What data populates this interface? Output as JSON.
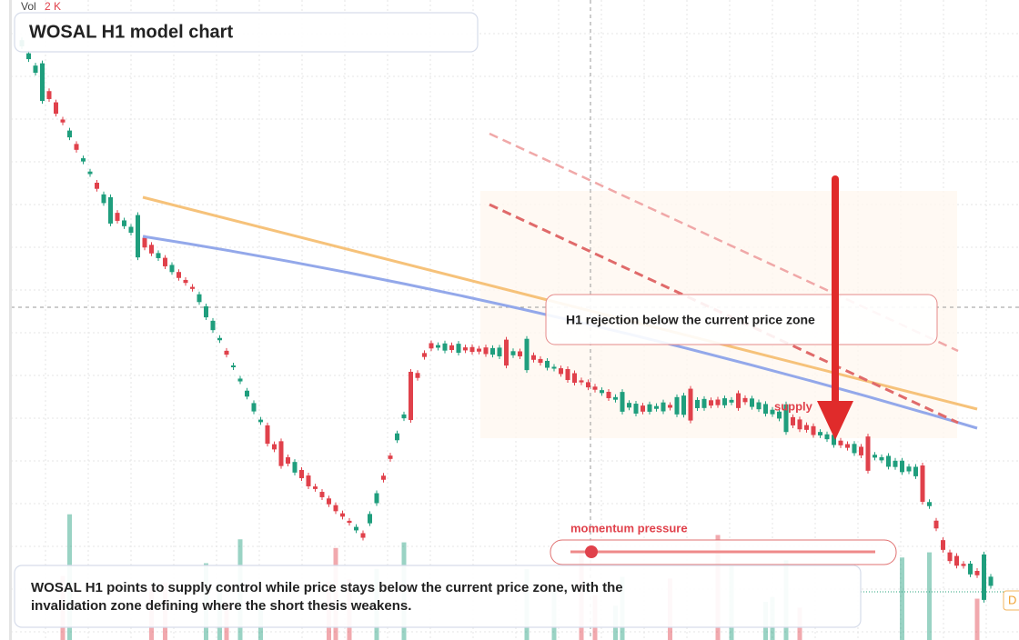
{
  "header": {
    "volume_label": "Vol",
    "volume_value": "2 K",
    "title": "WOSAL H1 model chart"
  },
  "annotations": {
    "rejection": "H1 rejection below the current price zone",
    "zone": "supply",
    "momentum": "momentum pressure",
    "price_tag": "D"
  },
  "footer": {
    "text_line1": "WOSAL H1 points to supply control while price stays below the current price zone, with the",
    "text_line2": "invalidation zone defining where the short thesis weakens."
  }
}
